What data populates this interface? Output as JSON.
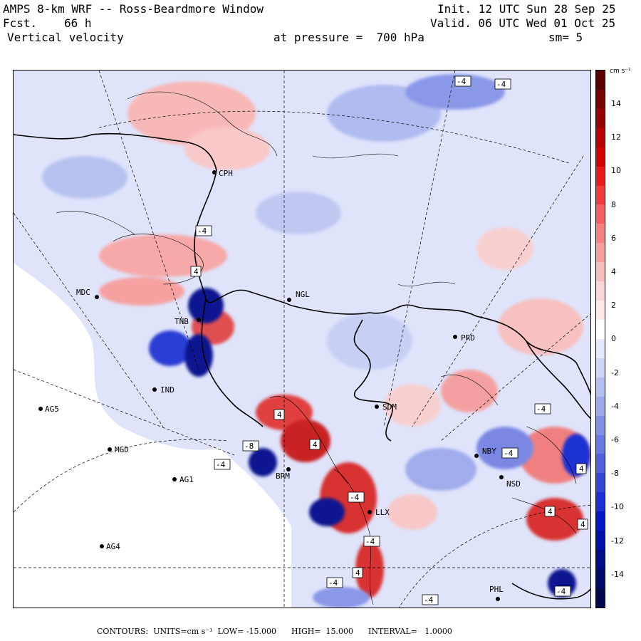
{
  "header": {
    "title": "AMPS 8-km WRF -- Ross-Beardmore Window",
    "forecast_label": "Fcst.",
    "forecast_hours": "66 h",
    "variable": "Vertical velocity",
    "pressure": "at pressure =  700 hPa",
    "init": "Init. 12 UTC Sun 28 Sep 25",
    "valid": "Valid. 06 UTC Wed 01 Oct 25",
    "smoothing": "sm= 5"
  },
  "colorbar": {
    "units": "cm s⁻¹",
    "labels": [
      "14",
      "12",
      "10",
      "8",
      "6",
      "4",
      "2",
      "0",
      "-2",
      "-4",
      "-6",
      "-8",
      "-10",
      "-12",
      "-14"
    ],
    "colors_top_to_bottom": [
      "#5a0000",
      "#7a0000",
      "#990000",
      "#b80000",
      "#d40000",
      "#e81a1a",
      "#f23c3c",
      "#f55f5f",
      "#f78080",
      "#f8a0a0",
      "#f9bcbc",
      "#fbd6d6",
      "#fde9e9",
      "#ffffff",
      "#e6e9fb",
      "#cfd5f6",
      "#b6bff1",
      "#9ca8ec",
      "#8290e7",
      "#6878e2",
      "#4e60dd",
      "#3448d8",
      "#1a30d3",
      "#0018c8",
      "#0010a8",
      "#000c88",
      "#000a6a",
      "#000850"
    ]
  },
  "stations": [
    {
      "code": "CPH"
    },
    {
      "code": "MDC"
    },
    {
      "code": "NGL"
    },
    {
      "code": "TNB"
    },
    {
      "code": "PRD"
    },
    {
      "code": "IND"
    },
    {
      "code": "AG5"
    },
    {
      "code": "SDM"
    },
    {
      "code": "MGD"
    },
    {
      "code": "NBY"
    },
    {
      "code": "AG1"
    },
    {
      "code": "NSD"
    },
    {
      "code": "BRM"
    },
    {
      "code": "AG4"
    },
    {
      "code": "PHL"
    },
    {
      "code": "LLX"
    }
  ],
  "contour_markers": [
    "4",
    "4",
    "4",
    "4",
    "4",
    "4",
    "4",
    "-4",
    "-4",
    "-4",
    "-4",
    "-4",
    "-4",
    "-4",
    "-4",
    "-4",
    "-4",
    "-4",
    "-8"
  ],
  "footer": {
    "contours": "CONTOURS:  UNITS=cm s⁻¹  LOW= -15.000      HIGH=  15.000      INTERVAL=   1.0000"
  }
}
